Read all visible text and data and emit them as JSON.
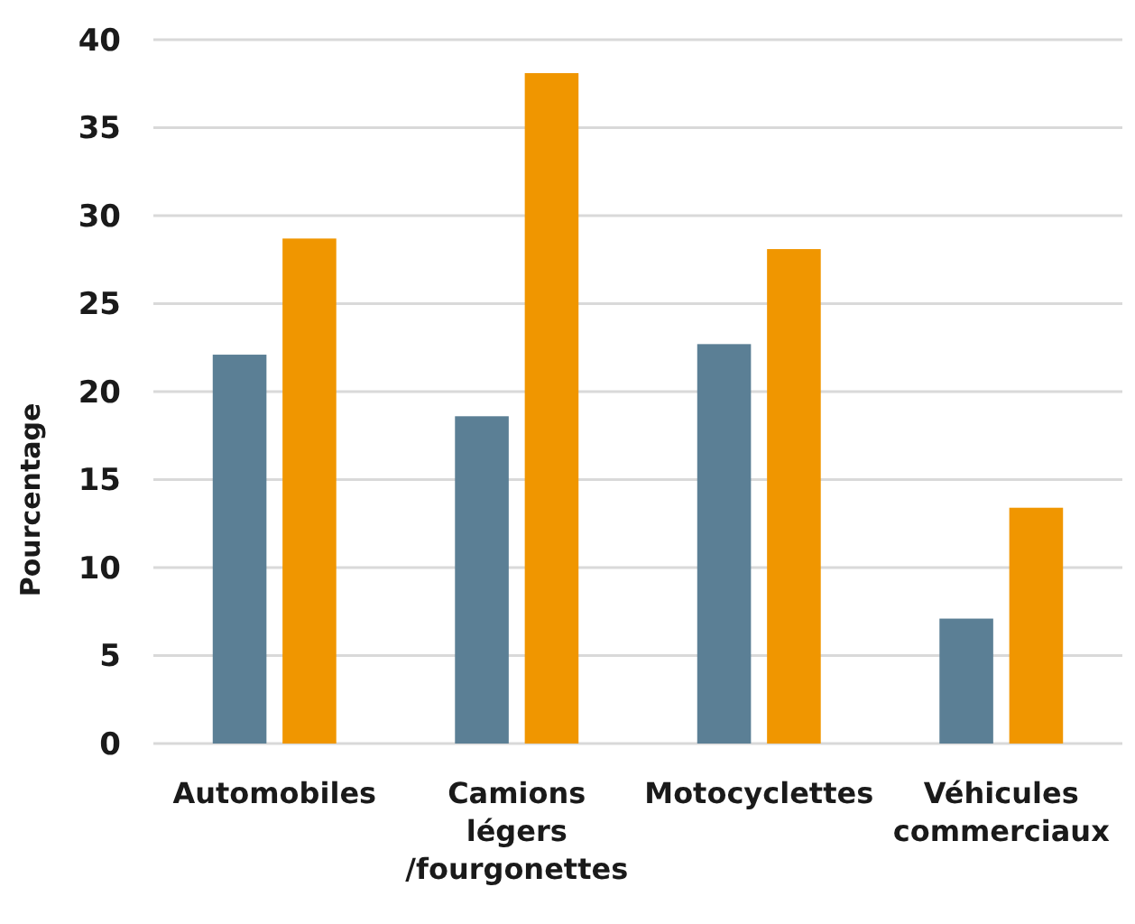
{
  "chart_data": {
    "type": "bar",
    "ylabel": "Pourcentage",
    "categories": [
      "Automobiles",
      "Camions légers /fourgonettes",
      "Motocyclettes",
      "Véhicules commerciaux"
    ],
    "series": [
      {
        "color": "#5b7f95",
        "values": [
          22.1,
          18.6,
          22.7,
          7.1
        ]
      },
      {
        "color": "#f09600",
        "values": [
          28.7,
          38.1,
          28.1,
          13.4
        ]
      }
    ],
    "ylim": [
      0,
      40
    ],
    "yticks": [
      0,
      5,
      10,
      15,
      20,
      25,
      30,
      35,
      40
    ],
    "grid": "y"
  }
}
